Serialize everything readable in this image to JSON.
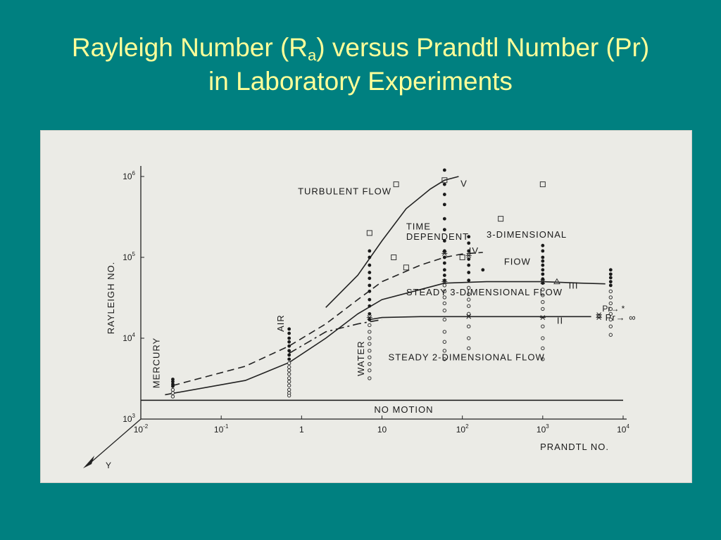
{
  "slide": {
    "title_line1_pre": "Rayleigh Number (R",
    "title_line1_sub": "a",
    "title_line1_post": ") versus Prandtl Number (Pr)",
    "title_line2": "in Laboratory Experiments"
  },
  "chart_data": {
    "type": "scatter",
    "xlabel": "PRANDTL NO.",
    "ylabel": "RAYLEIGH NO.",
    "xscale": "log",
    "yscale": "log",
    "xlim": [
      0.01,
      10000
    ],
    "ylim": [
      1000,
      1000000
    ],
    "grid": false,
    "y_axis_extra_label": "Y",
    "x_ticks": [
      {
        "v": 0.01,
        "base": "10",
        "exp": "-2"
      },
      {
        "v": 0.1,
        "base": "10",
        "exp": "-1"
      },
      {
        "v": 1,
        "base": "1",
        "exp": ""
      },
      {
        "v": 10,
        "base": "10",
        "exp": ""
      },
      {
        "v": 100,
        "base": "10",
        "exp": "2"
      },
      {
        "v": 1000,
        "base": "10",
        "exp": "3"
      },
      {
        "v": 10000,
        "base": "10",
        "exp": "4"
      }
    ],
    "y_ticks": [
      {
        "v": 1000,
        "base": "10",
        "exp": "3"
      },
      {
        "v": 10000,
        "base": "10",
        "exp": "4"
      },
      {
        "v": 100000,
        "base": "10",
        "exp": "5"
      },
      {
        "v": 1000000,
        "base": "10",
        "exp": "6"
      }
    ],
    "regime_labels": [
      {
        "text": "TURBULENT FLOW",
        "x": 0.9,
        "y": 600000
      },
      {
        "text": "TIME",
        "x": 20,
        "y": 220000
      },
      {
        "text": "DEPENDENT",
        "x": 20,
        "y": 165000
      },
      {
        "text": "3-DIMENSIONAL",
        "x": 200,
        "y": 175000
      },
      {
        "text": "FIOW",
        "x": 330,
        "y": 81000
      },
      {
        "text": "STEADY 3-DIMENSIONAL FLOW",
        "x": 20,
        "y": 34000
      },
      {
        "text": "STEADY 2-DIMENSIONAL FLOW",
        "x": 12,
        "y": 5300
      },
      {
        "text": "NO MOTION",
        "x": 8,
        "y": 1200
      },
      {
        "text": "MERCURY",
        "x": 0.017,
        "y": 2400
      },
      {
        "text": "AIR",
        "x": 0.6,
        "y": 12000
      },
      {
        "text": "WATER",
        "x": 6,
        "y": 3400
      }
    ],
    "curve_labels": [
      {
        "text": "V",
        "x": 95,
        "y": 750000
      },
      {
        "text": "IV",
        "x": 120,
        "y": 110000
      },
      {
        "text": "III",
        "x": 2100,
        "y": 41000
      },
      {
        "text": "II",
        "x": 1500,
        "y": 15000
      },
      {
        "text": "Pr→ ∞",
        "x": 6000,
        "y": 16500
      }
    ],
    "pr_infinity_marker": "Pr→ *",
    "series": [
      {
        "style": "solid",
        "role": "no-motion boundary",
        "points": [
          [
            0.01,
            1708
          ],
          [
            10000,
            1708
          ]
        ]
      },
      {
        "style": "solid",
        "role": "boundary II",
        "points": [
          [
            7,
            17000
          ],
          [
            10,
            18000
          ],
          [
            30,
            18500
          ],
          [
            100,
            18500
          ],
          [
            1000,
            18500
          ],
          [
            4000,
            18500
          ]
        ]
      },
      {
        "style": "solid",
        "role": "boundary III",
        "points": [
          [
            0.02,
            2000
          ],
          [
            0.2,
            3000
          ],
          [
            0.7,
            5000
          ],
          [
            2,
            10000
          ],
          [
            5,
            20000
          ],
          [
            10,
            30000
          ],
          [
            30,
            40000
          ],
          [
            60,
            48000
          ],
          [
            200,
            50000
          ],
          [
            1000,
            50000
          ],
          [
            3000,
            48000
          ],
          [
            6000,
            47000
          ]
        ]
      },
      {
        "style": "dash",
        "role": "boundary IV",
        "points": [
          [
            0.025,
            2600
          ],
          [
            0.2,
            4500
          ],
          [
            0.7,
            8000
          ],
          [
            2,
            15000
          ],
          [
            5,
            30000
          ],
          [
            10,
            50000
          ],
          [
            30,
            80000
          ],
          [
            60,
            100000
          ],
          [
            100,
            110000
          ],
          [
            180,
            115000
          ]
        ]
      },
      {
        "style": "dashdot",
        "role": "lower transition",
        "points": [
          [
            0.7,
            6500
          ],
          [
            2,
            12000
          ],
          [
            5,
            15000
          ],
          [
            10,
            17000
          ]
        ]
      },
      {
        "style": "solid",
        "role": "turbulent boundary V",
        "points": [
          [
            2,
            24000
          ],
          [
            5,
            60000
          ],
          [
            10,
            160000
          ],
          [
            20,
            400000
          ],
          [
            40,
            700000
          ],
          [
            60,
            900000
          ],
          [
            90,
            1000000
          ]
        ]
      }
    ],
    "points": {
      "filled": [
        [
          0.025,
          3100
        ],
        [
          0.025,
          2900
        ],
        [
          0.025,
          2700
        ],
        [
          0.025,
          2550
        ],
        [
          0.7,
          13000
        ],
        [
          0.7,
          11500
        ],
        [
          0.7,
          10000
        ],
        [
          0.7,
          9000
        ],
        [
          0.7,
          8000
        ],
        [
          0.7,
          7000
        ],
        [
          0.7,
          6200
        ],
        [
          0.7,
          5500
        ],
        [
          7,
          120000
        ],
        [
          7,
          100000
        ],
        [
          7,
          80000
        ],
        [
          7,
          65000
        ],
        [
          7,
          55000
        ],
        [
          7,
          45000
        ],
        [
          7,
          38000
        ],
        [
          7,
          30000
        ],
        [
          7,
          25000
        ],
        [
          7,
          20000
        ],
        [
          7,
          17000
        ],
        [
          60,
          1200000
        ],
        [
          60,
          800000
        ],
        [
          60,
          600000
        ],
        [
          60,
          450000
        ],
        [
          60,
          300000
        ],
        [
          60,
          220000
        ],
        [
          60,
          160000
        ],
        [
          60,
          120000
        ],
        [
          60,
          100000
        ],
        [
          60,
          85000
        ],
        [
          60,
          70000
        ],
        [
          60,
          60000
        ],
        [
          60,
          52000
        ],
        [
          120,
          180000
        ],
        [
          120,
          150000
        ],
        [
          120,
          120000
        ],
        [
          120,
          95000
        ],
        [
          120,
          80000
        ],
        [
          120,
          65000
        ],
        [
          120,
          52000
        ],
        [
          180,
          70000
        ],
        [
          1000,
          140000
        ],
        [
          1000,
          120000
        ],
        [
          1000,
          100000
        ],
        [
          1000,
          90000
        ],
        [
          1000,
          80000
        ],
        [
          1000,
          70000
        ],
        [
          1000,
          62000
        ],
        [
          1000,
          54000
        ],
        [
          1000,
          48000
        ],
        [
          7000,
          70000
        ],
        [
          7000,
          62000
        ],
        [
          7000,
          56000
        ],
        [
          7000,
          50000
        ],
        [
          7000,
          45000
        ]
      ],
      "open": [
        [
          0.025,
          2300
        ],
        [
          0.025,
          2100
        ],
        [
          0.025,
          1900
        ],
        [
          0.7,
          4900
        ],
        [
          0.7,
          4400
        ],
        [
          0.7,
          4000
        ],
        [
          0.7,
          3600
        ],
        [
          0.7,
          3200
        ],
        [
          0.7,
          2900
        ],
        [
          0.7,
          2600
        ],
        [
          0.7,
          2300
        ],
        [
          0.7,
          2100
        ],
        [
          0.7,
          1950
        ],
        [
          7,
          14500
        ],
        [
          7,
          12000
        ],
        [
          7,
          10000
        ],
        [
          7,
          8500
        ],
        [
          7,
          7000
        ],
        [
          7,
          5800
        ],
        [
          7,
          4800
        ],
        [
          7,
          4000
        ],
        [
          7,
          3200
        ],
        [
          60,
          45000
        ],
        [
          60,
          38000
        ],
        [
          60,
          32000
        ],
        [
          60,
          27000
        ],
        [
          60,
          22000
        ],
        [
          60,
          17000
        ],
        [
          60,
          12000
        ],
        [
          60,
          9000
        ],
        [
          60,
          7000
        ],
        [
          60,
          5500
        ],
        [
          120,
          42000
        ],
        [
          120,
          35000
        ],
        [
          120,
          30000
        ],
        [
          120,
          25000
        ],
        [
          120,
          20000
        ],
        [
          120,
          14000
        ],
        [
          120,
          10000
        ],
        [
          120,
          7500
        ],
        [
          1000,
          40000
        ],
        [
          1000,
          34000
        ],
        [
          1000,
          28000
        ],
        [
          1000,
          23000
        ],
        [
          1000,
          14000
        ],
        [
          1000,
          10000
        ],
        [
          1000,
          7500
        ],
        [
          1000,
          5500
        ],
        [
          7000,
          38000
        ],
        [
          7000,
          32000
        ],
        [
          7000,
          27000
        ],
        [
          7000,
          23000
        ],
        [
          7000,
          20000
        ],
        [
          7000,
          17000
        ],
        [
          7000,
          14000
        ],
        [
          7000,
          11000
        ]
      ],
      "squares": [
        [
          15,
          800000
        ],
        [
          60,
          900000
        ],
        [
          7,
          200000
        ],
        [
          14,
          100000
        ],
        [
          20,
          75000
        ],
        [
          100,
          100000
        ],
        [
          300,
          300000
        ],
        [
          1000,
          800000
        ]
      ],
      "stars": [
        [
          60,
          112000
        ],
        [
          120,
          105000
        ],
        [
          60,
          50000
        ],
        [
          1000,
          50000
        ],
        [
          7,
          18000
        ],
        [
          120,
          18500
        ],
        [
          1000,
          18000
        ],
        [
          5000,
          18000
        ],
        [
          5000,
          19500
        ]
      ],
      "triangles": [
        [
          1500,
          50000
        ]
      ]
    }
  }
}
